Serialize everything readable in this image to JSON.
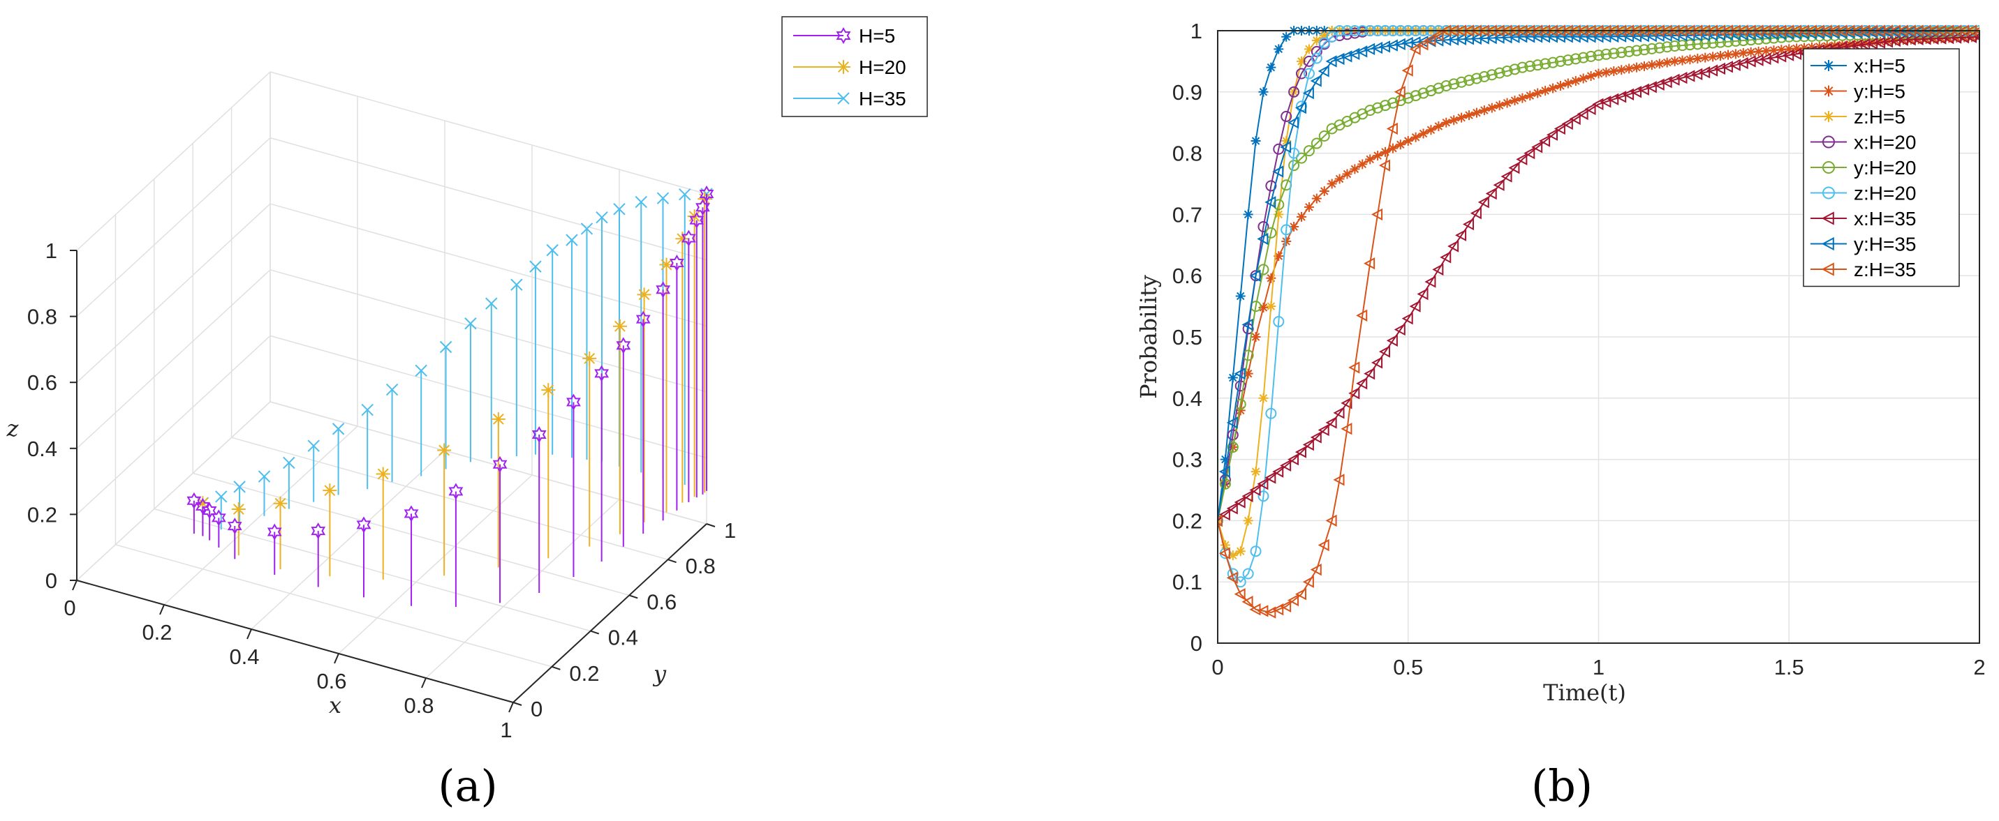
{
  "chart_data": [
    {
      "id": "a",
      "type": "scatter",
      "subtype": "3d-stem",
      "caption": "(a)",
      "xlabel": "x",
      "ylabel": "y",
      "zlabel": "z",
      "xlim": [
        0,
        1
      ],
      "ylim": [
        0,
        1
      ],
      "zlim": [
        0,
        1
      ],
      "x_ticks": [
        "0",
        "0.2",
        "0.4",
        "0.6",
        "0.8",
        "1"
      ],
      "y_ticks": [
        "0",
        "0.2",
        "0.4",
        "0.6",
        "0.8",
        "1"
      ],
      "z_ticks": [
        "0",
        "0.2",
        "0.4",
        "0.6",
        "0.8",
        "1"
      ],
      "grid": true,
      "legend_position": "top-right",
      "series": [
        {
          "name": "H=5",
          "color": "#A020F0",
          "marker": "hexagram",
          "x": [
            0.18,
            0.2,
            0.22,
            0.25,
            0.3,
            0.4,
            0.5,
            0.6,
            0.7,
            0.78,
            0.85,
            0.9,
            0.93,
            0.95,
            0.96,
            0.97,
            0.98,
            0.985,
            0.99,
            0.995,
            1.0,
            1.0
          ],
          "y": [
            0.2,
            0.2,
            0.19,
            0.17,
            0.14,
            0.12,
            0.12,
            0.13,
            0.15,
            0.2,
            0.27,
            0.36,
            0.47,
            0.57,
            0.66,
            0.74,
            0.82,
            0.88,
            0.93,
            0.96,
            0.98,
            1.0
          ],
          "z": [
            0.2,
            0.19,
            0.19,
            0.19,
            0.2,
            0.23,
            0.27,
            0.32,
            0.38,
            0.45,
            0.52,
            0.58,
            0.63,
            0.67,
            0.71,
            0.75,
            0.8,
            0.85,
            0.9,
            0.94,
            0.97,
            1.0
          ]
        },
        {
          "name": "H=20",
          "color": "#EDB120",
          "marker": "asterisk",
          "x": [
            0.2,
            0.3,
            0.4,
            0.5,
            0.6,
            0.7,
            0.78,
            0.85,
            0.9,
            0.93,
            0.95,
            0.97,
            0.98,
            0.99,
            1.0
          ],
          "y": [
            0.2,
            0.16,
            0.15,
            0.18,
            0.23,
            0.32,
            0.42,
            0.52,
            0.62,
            0.71,
            0.79,
            0.86,
            0.92,
            0.96,
            0.99
          ],
          "z": [
            0.2,
            0.24,
            0.3,
            0.36,
            0.42,
            0.48,
            0.55,
            0.61,
            0.67,
            0.73,
            0.79,
            0.85,
            0.9,
            0.95,
            0.99
          ]
        },
        {
          "name": "H=35",
          "color": "#4DBEEE",
          "marker": "x",
          "x": [
            0.2,
            0.22,
            0.24,
            0.27,
            0.3,
            0.33,
            0.36,
            0.4,
            0.43,
            0.47,
            0.5,
            0.53,
            0.56,
            0.6,
            0.63,
            0.66,
            0.7,
            0.73,
            0.76,
            0.8,
            0.85,
            0.9,
            0.95,
            1.0
          ],
          "y": [
            0.2,
            0.25,
            0.3,
            0.36,
            0.42,
            0.48,
            0.54,
            0.6,
            0.66,
            0.72,
            0.78,
            0.84,
            0.88,
            0.92,
            0.95,
            0.97,
            0.98,
            0.99,
            1.0,
            1.0,
            1.0,
            1.0,
            1.0,
            1.0
          ],
          "z": [
            0.2,
            0.2,
            0.21,
            0.22,
            0.24,
            0.27,
            0.3,
            0.34,
            0.38,
            0.42,
            0.47,
            0.52,
            0.57,
            0.62,
            0.67,
            0.72,
            0.76,
            0.8,
            0.84,
            0.88,
            0.92,
            0.95,
            0.98,
            1.0
          ]
        }
      ]
    },
    {
      "id": "b",
      "type": "line",
      "caption": "(b)",
      "xlabel": "Time(t)",
      "ylabel": "Probability",
      "xlim": [
        0,
        2
      ],
      "ylim": [
        0,
        1
      ],
      "x_ticks": [
        "0",
        "0.5",
        "1",
        "1.5",
        "2"
      ],
      "y_ticks": [
        "0",
        "0.1",
        "0.2",
        "0.3",
        "0.4",
        "0.5",
        "0.6",
        "0.7",
        "0.8",
        "0.9",
        "1"
      ],
      "grid": true,
      "legend_position": "top-right",
      "series": [
        {
          "name": "x:H=5",
          "color": "#0072BD",
          "marker": "asterisk",
          "t": [
            0,
            0.02,
            0.05,
            0.08,
            0.1,
            0.12,
            0.15,
            0.18,
            0.2,
            0.25,
            0.3,
            2
          ],
          "v": [
            0.2,
            0.3,
            0.5,
            0.7,
            0.82,
            0.9,
            0.96,
            0.99,
            1.0,
            1.0,
            1.0,
            1.0
          ]
        },
        {
          "name": "y:H=5",
          "color": "#D95319",
          "marker": "asterisk",
          "t": [
            0,
            0.05,
            0.1,
            0.15,
            0.2,
            0.25,
            0.3,
            0.4,
            0.5,
            0.6,
            0.7,
            0.8,
            0.9,
            1.0,
            1.2,
            1.4,
            1.6,
            1.8,
            2.0
          ],
          "v": [
            0.2,
            0.35,
            0.5,
            0.62,
            0.68,
            0.72,
            0.75,
            0.79,
            0.82,
            0.85,
            0.87,
            0.89,
            0.91,
            0.93,
            0.95,
            0.965,
            0.975,
            0.985,
            0.99
          ]
        },
        {
          "name": "z:H=5",
          "color": "#EDB120",
          "marker": "asterisk",
          "t": [
            0,
            0.03,
            0.06,
            0.08,
            0.1,
            0.12,
            0.14,
            0.16,
            0.18,
            0.2,
            0.22,
            0.25,
            0.3,
            0.35,
            2
          ],
          "v": [
            0.2,
            0.14,
            0.15,
            0.2,
            0.28,
            0.4,
            0.55,
            0.7,
            0.82,
            0.9,
            0.95,
            0.98,
            1.0,
            1.0,
            1.0
          ]
        },
        {
          "name": "x:H=20",
          "color": "#7E2F8E",
          "marker": "circle",
          "t": [
            0,
            0.03,
            0.06,
            0.09,
            0.12,
            0.15,
            0.18,
            0.21,
            0.25,
            0.3,
            0.4,
            2
          ],
          "v": [
            0.2,
            0.3,
            0.42,
            0.56,
            0.68,
            0.78,
            0.86,
            0.92,
            0.96,
            0.99,
            1.0,
            1.0
          ]
        },
        {
          "name": "y:H=20",
          "color": "#77AC30",
          "marker": "circle",
          "t": [
            0,
            0.05,
            0.1,
            0.15,
            0.2,
            0.25,
            0.3,
            0.4,
            0.5,
            0.6,
            0.8,
            1.0,
            1.2,
            1.5,
            1.8,
            2.0
          ],
          "v": [
            0.2,
            0.35,
            0.55,
            0.7,
            0.78,
            0.81,
            0.84,
            0.87,
            0.89,
            0.91,
            0.94,
            0.96,
            0.975,
            0.99,
            0.995,
            1.0
          ]
        },
        {
          "name": "z:H=20",
          "color": "#4DBEEE",
          "marker": "circle",
          "t": [
            0,
            0.03,
            0.06,
            0.09,
            0.11,
            0.13,
            0.15,
            0.17,
            0.19,
            0.21,
            0.24,
            0.28,
            0.32,
            2
          ],
          "v": [
            0.2,
            0.12,
            0.1,
            0.12,
            0.18,
            0.3,
            0.45,
            0.6,
            0.75,
            0.85,
            0.93,
            0.98,
            1.0,
            1.0
          ]
        },
        {
          "name": "x:H=35",
          "color": "#A2142F",
          "marker": "triangle-left",
          "t": [
            0,
            0.1,
            0.2,
            0.3,
            0.4,
            0.5,
            0.6,
            0.7,
            0.8,
            0.9,
            1.0,
            1.2,
            1.4,
            1.6,
            1.8,
            2.0
          ],
          "v": [
            0.2,
            0.25,
            0.3,
            0.36,
            0.44,
            0.53,
            0.63,
            0.72,
            0.79,
            0.84,
            0.88,
            0.92,
            0.95,
            0.97,
            0.985,
            0.99
          ]
        },
        {
          "name": "y:H=35",
          "color": "#0072BD",
          "marker": "triangle-left",
          "t": [
            0,
            0.05,
            0.1,
            0.15,
            0.2,
            0.25,
            0.3,
            0.4,
            0.5,
            0.6,
            0.8,
            1.0,
            1.5,
            2.0
          ],
          "v": [
            0.2,
            0.4,
            0.6,
            0.75,
            0.85,
            0.91,
            0.95,
            0.97,
            0.98,
            0.985,
            0.99,
            0.99,
            0.995,
            1.0
          ]
        },
        {
          "name": "z:H=35",
          "color": "#D95319",
          "marker": "triangle-left",
          "t": [
            0,
            0.03,
            0.06,
            0.1,
            0.14,
            0.18,
            0.22,
            0.26,
            0.3,
            0.33,
            0.36,
            0.4,
            0.44,
            0.48,
            0.52,
            0.6,
            2.0
          ],
          "v": [
            0.2,
            0.12,
            0.08,
            0.055,
            0.05,
            0.06,
            0.08,
            0.12,
            0.2,
            0.3,
            0.45,
            0.62,
            0.78,
            0.9,
            0.97,
            1.0,
            1.0
          ]
        }
      ]
    }
  ]
}
